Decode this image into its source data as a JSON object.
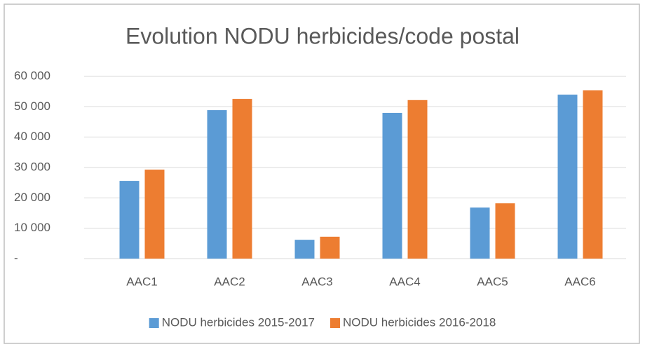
{
  "chart_data": {
    "type": "bar",
    "title": "Evolution NODU herbicides/code postal",
    "categories": [
      "AAC1",
      "AAC2",
      "AAC3",
      "AAC4",
      "AAC5",
      "AAC6"
    ],
    "series": [
      {
        "name": "NODU herbicides 2015-2017",
        "color": "#5b9bd5",
        "values": [
          25600,
          48900,
          6200,
          48000,
          16800,
          54000
        ]
      },
      {
        "name": "NODU herbicides 2016-2018",
        "color": "#ed7d31",
        "values": [
          29300,
          52600,
          7200,
          52200,
          18200,
          55400
        ]
      }
    ],
    "ylim": [
      0,
      60000
    ],
    "yticks": [
      {
        "value": 0,
        "label": "-"
      },
      {
        "value": 10000,
        "label": "10 000"
      },
      {
        "value": 20000,
        "label": "20 000"
      },
      {
        "value": 30000,
        "label": "30 000"
      },
      {
        "value": 40000,
        "label": "40 000"
      },
      {
        "value": 50000,
        "label": "50 000"
      },
      {
        "value": 60000,
        "label": "60 000"
      }
    ],
    "grid": true,
    "legend": "bottom"
  }
}
